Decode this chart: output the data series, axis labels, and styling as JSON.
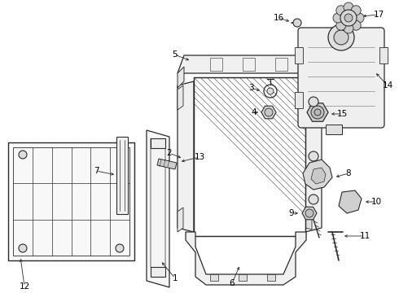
{
  "bg_color": "#ffffff",
  "line_color": "#2a2a2a",
  "label_color": "#000000",
  "fig_width": 4.9,
  "fig_height": 3.6,
  "dpi": 100,
  "xlim": [
    0,
    490
  ],
  "ylim": [
    0,
    360
  ]
}
